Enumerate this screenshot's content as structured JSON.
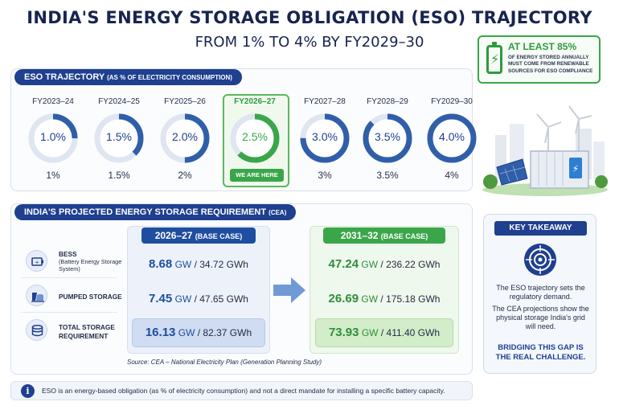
{
  "title": "INDIA'S ENERGY STORAGE OBLIGATION (ESO) TRAJECTORY",
  "subtitle": "FROM 1% TO 4% BY FY2029–30",
  "callout": {
    "headline": "AT LEAST 85%",
    "text": "OF ENERGY STORED ANNUALLY MUST COME FROM RENEWABLE SOURCES FOR ESO COMPLIANCE",
    "icon": "battery-bolt-icon",
    "color": "#2e9a3f"
  },
  "trajectory": {
    "label": "ESO TRAJECTORY",
    "label_note": "(AS % OF ELECTRICITY CONSUMPTION)",
    "years": [
      {
        "year": "FY2023–24",
        "ring": "1.0%",
        "below": "1%",
        "fraction": 0.25
      },
      {
        "year": "FY2024–25",
        "ring": "1.5%",
        "below": "1.5%",
        "fraction": 0.375
      },
      {
        "year": "FY2025–26",
        "ring": "2.0%",
        "below": "2%",
        "fraction": 0.5
      },
      {
        "year": "FY2026–27",
        "ring": "2.5%",
        "below": "",
        "fraction": 0.625,
        "active": true
      },
      {
        "year": "FY2027–28",
        "ring": "3.0%",
        "below": "3%",
        "fraction": 0.75
      },
      {
        "year": "FY2028–29",
        "ring": "3.5%",
        "below": "3.5%",
        "fraction": 0.875
      },
      {
        "year": "FY2029–30",
        "ring": "4.0%",
        "below": "4%",
        "fraction": 1.0
      }
    ],
    "here_label": "WE ARE HERE",
    "colors": {
      "ring": "#2f5fa8",
      "track": "#dfe6f2",
      "active": "#3aa64a"
    }
  },
  "requirement": {
    "label": "INDIA'S PROJECTED ENERGY STORAGE REQUIREMENT",
    "label_note": "(CEA)",
    "rows": [
      {
        "name": "BESS",
        "sub": "(Battery Energy Storage System)",
        "icon": "battery-icon"
      },
      {
        "name": "PUMPED STORAGE",
        "sub": "",
        "icon": "dam-icon"
      },
      {
        "name": "TOTAL STORAGE REQUIREMENT",
        "sub": "",
        "icon": "database-icon"
      }
    ],
    "col1": {
      "head": "2026–27",
      "head_note": "(BASE CASE)",
      "values": [
        {
          "gw": "8.68",
          "gwh": "34.72"
        },
        {
          "gw": "7.45",
          "gwh": "47.65"
        },
        {
          "gw": "16.13",
          "gwh": "82.37"
        }
      ]
    },
    "col2": {
      "head": "2031–32",
      "head_note": "(BASE CASE)",
      "values": [
        {
          "gw": "47.24",
          "gwh": "236.22"
        },
        {
          "gw": "26.69",
          "gwh": "175.18"
        },
        {
          "gw": "73.93",
          "gwh": "411.40"
        }
      ]
    },
    "unit_gw": "GW",
    "unit_gwh": "GWh",
    "source": "Source: CEA – National Electricity Plan (Generation Planning Study)"
  },
  "takeaway": {
    "head": "KEY TAKEAWAY",
    "icon": "target-icon",
    "p1": "The ESO trajectory sets the regulatory demand.",
    "p2": "The CEA projections show the physical storage India's grid will need.",
    "strong": "BRIDGING THIS GAP IS THE REAL CHALLENGE."
  },
  "note": "ESO is an energy-based obligation (as % of electricity consumption) and not a direct mandate for installing a specific battery capacity."
}
